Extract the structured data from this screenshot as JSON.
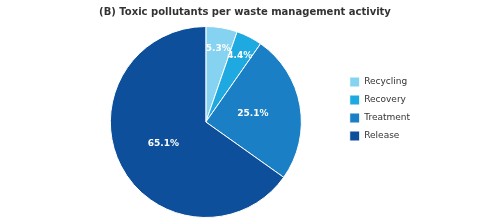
{
  "chart_data": {
    "type": "pie",
    "title": "(B) Toxic pollutants per waste management activity",
    "categories": [
      "Recycling",
      "Recovery",
      "Treatment",
      "Release"
    ],
    "values": [
      5.3,
      4.4,
      25.1,
      65.1
    ],
    "value_labels": [
      "5.3%",
      "4.4%",
      "25.1%",
      "65.1%"
    ],
    "colors": [
      "#86d2f1",
      "#1fa9e1",
      "#1a7fc5",
      "#0d4f9b"
    ],
    "data_labels": true,
    "legend": "right"
  }
}
